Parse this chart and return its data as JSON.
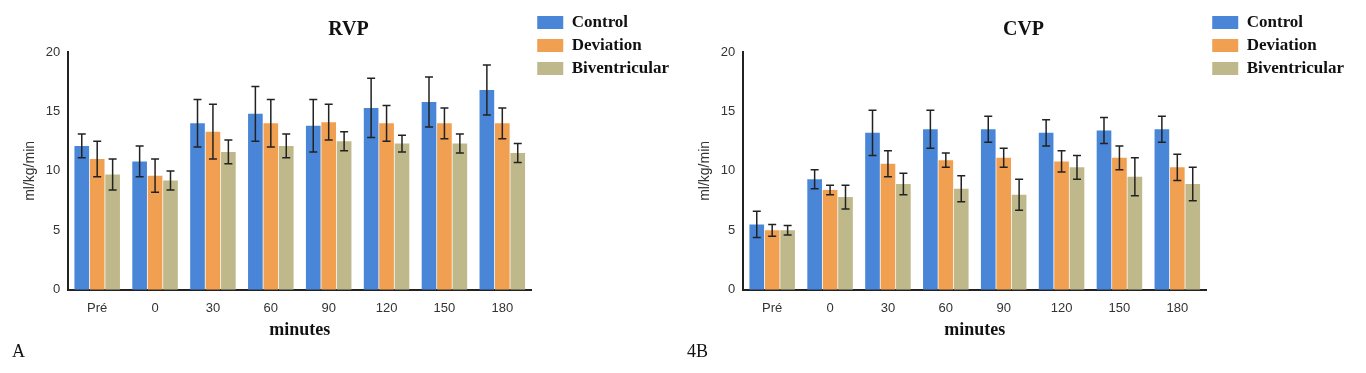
{
  "chart_data": [
    {
      "type": "bar",
      "title": "RVP",
      "xlabel": "minutes",
      "ylabel": "ml/kg/min",
      "categories": [
        "Pré",
        "0",
        "30",
        "60",
        "90",
        "120",
        "150",
        "180"
      ],
      "series": [
        {
          "name": "Control",
          "color": "#4a86d8",
          "values": [
            12.1,
            10.8,
            14.0,
            14.8,
            13.8,
            15.3,
            15.8,
            16.8
          ],
          "errors": [
            1.0,
            1.3,
            2.0,
            2.3,
            2.2,
            2.5,
            2.1,
            2.1
          ]
        },
        {
          "name": "Deviation",
          "color": "#f0a050",
          "values": [
            11.0,
            9.6,
            13.3,
            14.0,
            14.1,
            14.0,
            14.0,
            14.0
          ],
          "errors": [
            1.5,
            1.4,
            2.3,
            2.0,
            1.5,
            1.5,
            1.3,
            1.3
          ]
        },
        {
          "name": "Biventricular",
          "color": "#bfb88a",
          "values": [
            9.7,
            9.2,
            11.6,
            12.1,
            12.5,
            12.3,
            12.3,
            11.5
          ],
          "errors": [
            1.3,
            0.8,
            1.0,
            1.0,
            0.8,
            0.7,
            0.8,
            0.8
          ]
        }
      ],
      "ylim": [
        0,
        20
      ],
      "yticks": [
        0,
        5,
        10,
        15,
        20
      ],
      "grid": false,
      "legend": "top right",
      "annotations": [
        "A"
      ]
    },
    {
      "type": "bar",
      "title": "CVP",
      "xlabel": "minutes",
      "ylabel": "ml/kg/min",
      "categories": [
        "Pré",
        "0",
        "30",
        "60",
        "90",
        "120",
        "150",
        "180"
      ],
      "series": [
        {
          "name": "Control",
          "color": "#4a86d8",
          "values": [
            5.5,
            9.3,
            13.2,
            13.5,
            13.5,
            13.2,
            13.4,
            13.5
          ],
          "errors": [
            1.1,
            0.8,
            1.9,
            1.6,
            1.1,
            1.1,
            1.1,
            1.1
          ]
        },
        {
          "name": "Deviation",
          "color": "#f0a050",
          "values": [
            5.0,
            8.4,
            10.6,
            10.9,
            11.1,
            10.8,
            11.1,
            10.3
          ],
          "errors": [
            0.5,
            0.4,
            1.1,
            0.6,
            0.8,
            0.9,
            1.0,
            1.1
          ]
        },
        {
          "name": "Biventricular",
          "color": "#bfb88a",
          "values": [
            5.0,
            7.8,
            8.9,
            8.5,
            8.0,
            10.3,
            9.5,
            8.9
          ],
          "errors": [
            0.4,
            1.0,
            0.9,
            1.1,
            1.3,
            1.0,
            1.6,
            1.4
          ]
        }
      ],
      "ylim": [
        0,
        20
      ],
      "yticks": [
        0,
        5,
        10,
        15,
        20
      ],
      "grid": false,
      "legend": "top right",
      "annotations": [
        "4B"
      ]
    }
  ]
}
